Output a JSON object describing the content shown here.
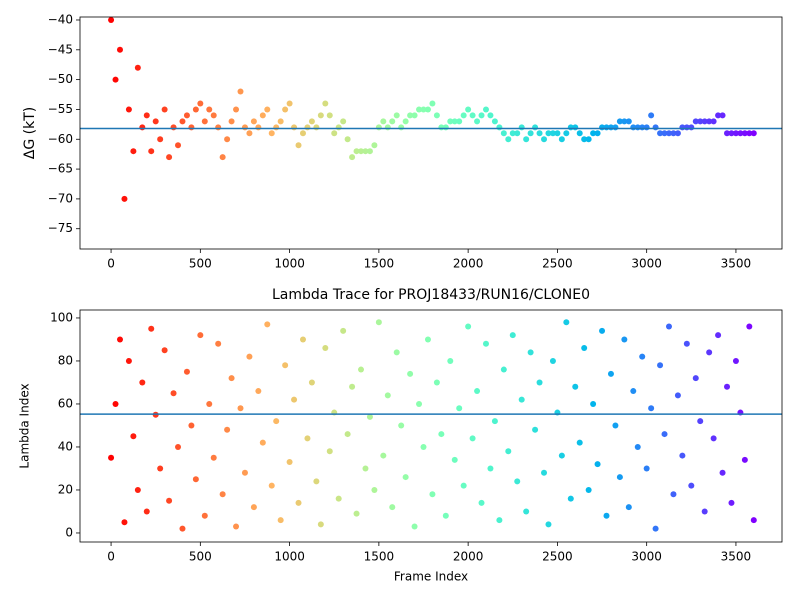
{
  "chart_data": [
    {
      "type": "scatter",
      "ylabel": "ΔG (kT)",
      "colormap": "rainbow_r",
      "marker_size": 3,
      "x": [
        0,
        25,
        50,
        75,
        100,
        125,
        150,
        175,
        200,
        225,
        250,
        275,
        300,
        325,
        350,
        375,
        400,
        425,
        450,
        475,
        500,
        525,
        550,
        575,
        600,
        625,
        650,
        675,
        700,
        725,
        750,
        775,
        800,
        825,
        850,
        875,
        900,
        925,
        950,
        975,
        1000,
        1025,
        1050,
        1075,
        1100,
        1125,
        1150,
        1175,
        1200,
        1225,
        1250,
        1275,
        1300,
        1325,
        1350,
        1375,
        1400,
        1425,
        1450,
        1475,
        1500,
        1525,
        1550,
        1575,
        1600,
        1625,
        1650,
        1675,
        1700,
        1725,
        1750,
        1775,
        1800,
        1825,
        1850,
        1875,
        1900,
        1925,
        1950,
        1975,
        2000,
        2025,
        2050,
        2075,
        2100,
        2125,
        2150,
        2175,
        2200,
        2225,
        2250,
        2275,
        2300,
        2325,
        2350,
        2375,
        2400,
        2425,
        2450,
        2475,
        2500,
        2525,
        2550,
        2575,
        2600,
        2625,
        2650,
        2675,
        2700,
        2725,
        2750,
        2775,
        2800,
        2825,
        2850,
        2875,
        2900,
        2925,
        2950,
        2975,
        3000,
        3025,
        3050,
        3075,
        3100,
        3125,
        3150,
        3175,
        3200,
        3225,
        3250,
        3275,
        3300,
        3325,
        3350,
        3375,
        3400,
        3425,
        3450,
        3475,
        3500,
        3525,
        3550,
        3575,
        3600
      ],
      "values": [
        -40,
        -50,
        -45,
        -70,
        -55,
        -62,
        -48,
        -58,
        -56,
        -62,
        -57,
        -60,
        -55,
        -63,
        -58,
        -61,
        -57,
        -56,
        -58,
        -55,
        -54,
        -57,
        -55,
        -56,
        -58,
        -63,
        -60,
        -57,
        -55,
        -52,
        -58,
        -59,
        -57,
        -58,
        -56,
        -55,
        -59,
        -58,
        -57,
        -55,
        -54,
        -58,
        -61,
        -59,
        -58,
        -57,
        -58,
        -56,
        -54,
        -56,
        -59,
        -58,
        -57,
        -60,
        -63,
        -62,
        -62,
        -62,
        -62,
        -61,
        -58,
        -57,
        -58,
        -57,
        -56,
        -58,
        -57,
        -56,
        -56,
        -55,
        -55,
        -55,
        -54,
        -56,
        -58,
        -58,
        -57,
        -57,
        -57,
        -56,
        -55,
        -56,
        -57,
        -56,
        -55,
        -56,
        -57,
        -58,
        -59,
        -60,
        -59,
        -59,
        -58,
        -60,
        -59,
        -58,
        -59,
        -60,
        -59,
        -59,
        -59,
        -60,
        -59,
        -58,
        -58,
        -59,
        -60,
        -60,
        -59,
        -59,
        -58,
        -58,
        -58,
        -58,
        -57,
        -57,
        -57,
        -58,
        -58,
        -58,
        -58,
        -56,
        -58,
        -59,
        -59,
        -59,
        -59,
        -59,
        -58,
        -58,
        -58,
        -57,
        -57,
        -57,
        -57,
        -57,
        -56,
        -56,
        -59,
        -59,
        -59,
        -59,
        -59,
        -59,
        -59
      ],
      "reference_line": {
        "value": -58.2,
        "color": "#1f77b4"
      },
      "xlim": [
        -174,
        3758
      ],
      "ylim": [
        -78.4,
        -39.5
      ],
      "xticks": [
        0,
        500,
        1000,
        1500,
        2000,
        2500,
        3000,
        3500
      ],
      "yticks": [
        {
          "value": -40,
          "label": "−40"
        },
        {
          "value": -45,
          "label": "−45"
        },
        {
          "value": -50,
          "label": "−50"
        },
        {
          "value": -55,
          "label": "−55"
        },
        {
          "value": -60,
          "label": "−60"
        },
        {
          "value": -65,
          "label": "−65"
        },
        {
          "value": -70,
          "label": "−70"
        },
        {
          "value": -75,
          "label": "−75"
        }
      ]
    },
    {
      "type": "scatter",
      "title": "Lambda Trace for PROJ18433/RUN16/CLONE0",
      "xlabel": "Frame Index",
      "ylabel": "Lambda Index",
      "colormap": "rainbow_r",
      "marker_size": 3,
      "x": [
        0,
        25,
        50,
        75,
        100,
        125,
        150,
        175,
        200,
        225,
        250,
        275,
        300,
        325,
        350,
        375,
        400,
        425,
        450,
        475,
        500,
        525,
        550,
        575,
        600,
        625,
        650,
        675,
        700,
        725,
        750,
        775,
        800,
        825,
        850,
        875,
        900,
        925,
        950,
        975,
        1000,
        1025,
        1050,
        1075,
        1100,
        1125,
        1150,
        1175,
        1200,
        1225,
        1250,
        1275,
        1300,
        1325,
        1350,
        1375,
        1400,
        1425,
        1450,
        1475,
        1500,
        1525,
        1550,
        1575,
        1600,
        1625,
        1650,
        1675,
        1700,
        1725,
        1750,
        1775,
        1800,
        1825,
        1850,
        1875,
        1900,
        1925,
        1950,
        1975,
        2000,
        2025,
        2050,
        2075,
        2100,
        2125,
        2150,
        2175,
        2200,
        2225,
        2250,
        2275,
        2300,
        2325,
        2350,
        2375,
        2400,
        2425,
        2450,
        2475,
        2500,
        2525,
        2550,
        2575,
        2600,
        2625,
        2650,
        2675,
        2700,
        2725,
        2750,
        2775,
        2800,
        2825,
        2850,
        2875,
        2900,
        2925,
        2950,
        2975,
        3000,
        3025,
        3050,
        3075,
        3100,
        3125,
        3150,
        3175,
        3200,
        3225,
        3250,
        3275,
        3300,
        3325,
        3350,
        3375,
        3400,
        3425,
        3450,
        3475,
        3500,
        3525,
        3550,
        3575,
        3600
      ],
      "values": [
        35,
        60,
        90,
        5,
        80,
        45,
        20,
        70,
        10,
        95,
        55,
        30,
        85,
        15,
        65,
        40,
        2,
        75,
        50,
        25,
        92,
        8,
        60,
        35,
        88,
        18,
        48,
        72,
        3,
        58,
        28,
        82,
        12,
        66,
        42,
        97,
        22,
        52,
        6,
        78,
        33,
        62,
        14,
        90,
        44,
        70,
        24,
        4,
        86,
        38,
        56,
        16,
        94,
        46,
        68,
        9,
        76,
        30,
        54,
        20,
        98,
        36,
        64,
        12,
        84,
        50,
        26,
        74,
        3,
        60,
        40,
        90,
        18,
        70,
        46,
        8,
        80,
        34,
        58,
        22,
        96,
        44,
        66,
        14,
        88,
        30,
        52,
        6,
        76,
        38,
        92,
        24,
        62,
        10,
        84,
        48,
        70,
        28,
        4,
        80,
        56,
        36,
        98,
        16,
        68,
        42,
        86,
        20,
        60,
        32,
        94,
        8,
        74,
        50,
        26,
        90,
        12,
        66,
        40,
        82,
        30,
        58,
        2,
        78,
        46,
        96,
        18,
        64,
        36,
        88,
        22,
        72,
        52,
        10,
        84,
        44,
        92,
        28,
        68,
        14,
        80,
        56,
        34,
        96,
        6
      ],
      "reference_line": {
        "value": 55.3,
        "color": "#1f77b4"
      },
      "xlim": [
        -174,
        3758
      ],
      "ylim": [
        -4.2,
        103.7
      ],
      "xticks": [
        0,
        500,
        1000,
        1500,
        2000,
        2500,
        3000,
        3500
      ],
      "yticks": [
        0,
        20,
        40,
        60,
        80,
        100
      ]
    }
  ]
}
